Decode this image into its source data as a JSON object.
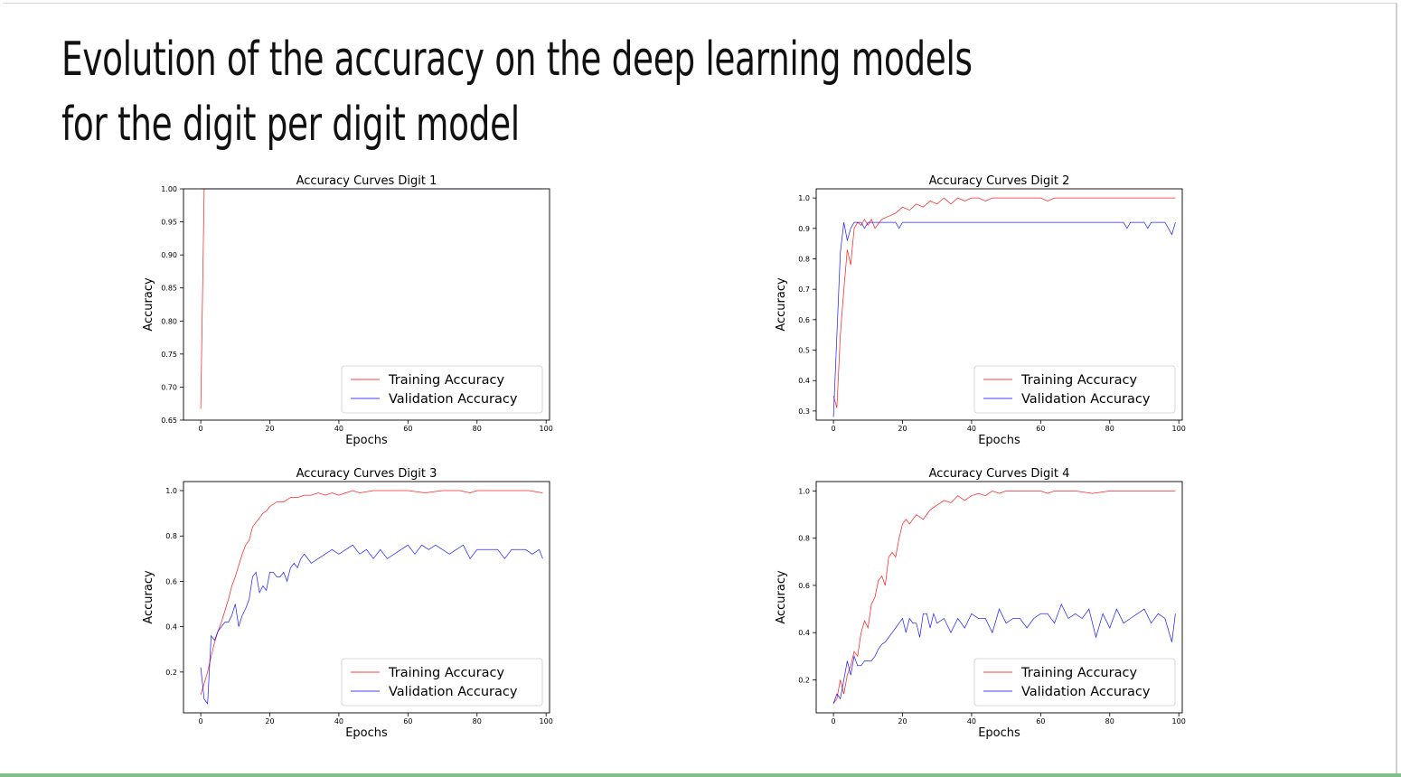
{
  "slide": {
    "title": "Evolution of the accuracy on the deep learning models for the digit per digit model"
  },
  "colors": {
    "training": "#ff0000",
    "validation": "#0000ff",
    "axis": "#000000"
  },
  "chart_data": [
    {
      "type": "line",
      "title": "Accuracy Curves Digit 1",
      "xlabel": "Epochs",
      "ylabel": "Accuracy",
      "xlim": [
        -5,
        101
      ],
      "ylim": [
        0.65,
        1.0
      ],
      "xticks": [
        0,
        20,
        40,
        60,
        80,
        100
      ],
      "xtick_labels": [
        "0",
        "20",
        "40",
        "60",
        "80",
        "100"
      ],
      "yticks": [
        0.65,
        0.7,
        0.75,
        0.8,
        0.85,
        0.9,
        0.95,
        1.0
      ],
      "ytick_labels": [
        "0.65",
        "0.70",
        "0.75",
        "0.80",
        "0.85",
        "0.90",
        "0.95",
        "1.00"
      ],
      "legend": "lower-right",
      "grid": false,
      "series": [
        {
          "name": "Training Accuracy",
          "x": [
            0,
            1,
            2,
            99
          ],
          "values": [
            0.667,
            1.0,
            1.0,
            1.0
          ]
        },
        {
          "name": "Validation Accuracy",
          "x": [
            0,
            1,
            99
          ],
          "values": [
            1.0,
            1.0,
            1.0
          ]
        }
      ]
    },
    {
      "type": "line",
      "title": "Accuracy Curves Digit 2",
      "xlabel": "Epochs",
      "ylabel": "Accuracy",
      "xlim": [
        -5,
        101
      ],
      "ylim": [
        0.27,
        1.03
      ],
      "xticks": [
        0,
        20,
        40,
        60,
        80,
        100
      ],
      "xtick_labels": [
        "0",
        "20",
        "40",
        "60",
        "80",
        "100"
      ],
      "yticks": [
        0.3,
        0.4,
        0.5,
        0.6,
        0.7,
        0.8,
        0.9,
        1.0
      ],
      "ytick_labels": [
        "0.3",
        "0.4",
        "0.5",
        "0.6",
        "0.7",
        "0.8",
        "0.9",
        "1.0"
      ],
      "legend": "lower-right",
      "grid": false,
      "series": [
        {
          "name": "Training Accuracy",
          "x": [
            0,
            1,
            2,
            3,
            4,
            5,
            6,
            7,
            8,
            9,
            10,
            11,
            12,
            14,
            16,
            18,
            20,
            22,
            24,
            26,
            28,
            30,
            32,
            34,
            36,
            38,
            40,
            42,
            44,
            46,
            50,
            55,
            60,
            62,
            64,
            70,
            80,
            90,
            99
          ],
          "values": [
            0.35,
            0.31,
            0.55,
            0.7,
            0.83,
            0.78,
            0.9,
            0.92,
            0.91,
            0.93,
            0.91,
            0.93,
            0.9,
            0.93,
            0.94,
            0.95,
            0.97,
            0.96,
            0.98,
            0.97,
            0.99,
            0.98,
            1.0,
            0.98,
            1.0,
            0.99,
            1.0,
            1.0,
            0.99,
            1.0,
            1.0,
            1.0,
            1.0,
            0.99,
            1.0,
            1.0,
            1.0,
            1.0,
            1.0
          ]
        },
        {
          "name": "Validation Accuracy",
          "x": [
            0,
            1,
            2,
            3,
            4,
            5,
            6,
            7,
            8,
            9,
            10,
            11,
            12,
            13,
            14,
            15,
            18,
            19,
            20,
            25,
            30,
            40,
            50,
            60,
            70,
            80,
            84,
            85,
            86,
            90,
            91,
            92,
            95,
            96,
            97,
            98,
            99
          ],
          "values": [
            0.28,
            0.55,
            0.82,
            0.92,
            0.86,
            0.9,
            0.92,
            0.92,
            0.92,
            0.9,
            0.92,
            0.92,
            0.92,
            0.92,
            0.92,
            0.92,
            0.92,
            0.9,
            0.92,
            0.92,
            0.92,
            0.92,
            0.92,
            0.92,
            0.92,
            0.92,
            0.92,
            0.9,
            0.92,
            0.92,
            0.9,
            0.92,
            0.92,
            0.92,
            0.9,
            0.88,
            0.92
          ]
        }
      ]
    },
    {
      "type": "line",
      "title": "Accuracy Curves Digit 3",
      "xlabel": "Epochs",
      "ylabel": "Accuracy",
      "xlim": [
        -5,
        101
      ],
      "ylim": [
        0.02,
        1.04
      ],
      "xticks": [
        0,
        20,
        40,
        60,
        80,
        100
      ],
      "xtick_labels": [
        "0",
        "20",
        "40",
        "60",
        "80",
        "100"
      ],
      "yticks": [
        0.2,
        0.4,
        0.6,
        0.8,
        1.0
      ],
      "ytick_labels": [
        "0.2",
        "0.4",
        "0.6",
        "0.8",
        "1.0"
      ],
      "legend": "lower-right",
      "grid": false,
      "series": [
        {
          "name": "Training Accuracy",
          "x": [
            0,
            1,
            2,
            3,
            4,
            5,
            6,
            7,
            8,
            9,
            10,
            11,
            12,
            13,
            14,
            15,
            16,
            17,
            18,
            19,
            20,
            22,
            24,
            26,
            28,
            30,
            32,
            34,
            36,
            38,
            40,
            42,
            44,
            46,
            50,
            55,
            60,
            65,
            70,
            75,
            78,
            80,
            85,
            90,
            95,
            99
          ],
          "values": [
            0.1,
            0.15,
            0.2,
            0.27,
            0.33,
            0.38,
            0.42,
            0.47,
            0.52,
            0.58,
            0.62,
            0.67,
            0.72,
            0.76,
            0.78,
            0.84,
            0.86,
            0.88,
            0.9,
            0.91,
            0.93,
            0.95,
            0.95,
            0.97,
            0.97,
            0.98,
            0.98,
            0.99,
            0.98,
            0.99,
            0.98,
            0.99,
            1.0,
            0.99,
            1.0,
            1.0,
            1.0,
            0.99,
            1.0,
            1.0,
            0.99,
            1.0,
            1.0,
            1.0,
            1.0,
            0.99
          ]
        },
        {
          "name": "Validation Accuracy",
          "x": [
            0,
            1,
            2,
            3,
            4,
            5,
            6,
            7,
            8,
            9,
            10,
            11,
            12,
            13,
            14,
            15,
            16,
            17,
            18,
            19,
            20,
            21,
            22,
            23,
            24,
            25,
            26,
            27,
            28,
            29,
            30,
            32,
            34,
            36,
            38,
            40,
            42,
            44,
            46,
            48,
            50,
            52,
            54,
            56,
            58,
            60,
            62,
            64,
            66,
            68,
            70,
            72,
            74,
            76,
            78,
            80,
            82,
            84,
            86,
            88,
            90,
            92,
            94,
            96,
            98,
            99
          ],
          "values": [
            0.22,
            0.08,
            0.06,
            0.36,
            0.34,
            0.38,
            0.4,
            0.42,
            0.42,
            0.45,
            0.5,
            0.4,
            0.45,
            0.48,
            0.52,
            0.62,
            0.64,
            0.55,
            0.58,
            0.56,
            0.64,
            0.64,
            0.62,
            0.62,
            0.64,
            0.6,
            0.66,
            0.68,
            0.66,
            0.7,
            0.72,
            0.68,
            0.7,
            0.72,
            0.74,
            0.72,
            0.74,
            0.76,
            0.72,
            0.74,
            0.7,
            0.74,
            0.7,
            0.72,
            0.74,
            0.76,
            0.72,
            0.76,
            0.74,
            0.76,
            0.74,
            0.72,
            0.74,
            0.76,
            0.7,
            0.74,
            0.74,
            0.74,
            0.74,
            0.7,
            0.74,
            0.74,
            0.74,
            0.72,
            0.74,
            0.7
          ]
        }
      ]
    },
    {
      "type": "line",
      "title": "Accuracy Curves Digit 4",
      "xlabel": "Epochs",
      "ylabel": "Accuracy",
      "xlim": [
        -5,
        101
      ],
      "ylim": [
        0.06,
        1.04
      ],
      "xticks": [
        0,
        20,
        40,
        60,
        80,
        100
      ],
      "xtick_labels": [
        "0",
        "20",
        "40",
        "60",
        "80",
        "100"
      ],
      "yticks": [
        0.2,
        0.4,
        0.6,
        0.8,
        1.0
      ],
      "ytick_labels": [
        "0.2",
        "0.4",
        "0.6",
        "0.8",
        "1.0"
      ],
      "legend": "lower-right",
      "grid": false,
      "series": [
        {
          "name": "Training Accuracy",
          "x": [
            0,
            1,
            2,
            3,
            4,
            5,
            6,
            7,
            8,
            9,
            10,
            11,
            12,
            13,
            14,
            15,
            16,
            17,
            18,
            19,
            20,
            21,
            22,
            24,
            26,
            28,
            30,
            32,
            34,
            36,
            38,
            40,
            42,
            44,
            46,
            48,
            50,
            55,
            60,
            62,
            64,
            66,
            70,
            75,
            80,
            85,
            90,
            95,
            99
          ],
          "values": [
            0.1,
            0.12,
            0.2,
            0.14,
            0.22,
            0.26,
            0.32,
            0.3,
            0.4,
            0.45,
            0.42,
            0.52,
            0.55,
            0.62,
            0.64,
            0.6,
            0.72,
            0.74,
            0.72,
            0.8,
            0.86,
            0.88,
            0.86,
            0.9,
            0.88,
            0.92,
            0.94,
            0.96,
            0.95,
            0.98,
            0.96,
            0.98,
            0.99,
            0.98,
            1.0,
            0.99,
            1.0,
            1.0,
            1.0,
            0.99,
            1.0,
            1.0,
            1.0,
            0.99,
            1.0,
            1.0,
            1.0,
            1.0,
            1.0
          ]
        },
        {
          "name": "Validation Accuracy",
          "x": [
            0,
            1,
            2,
            3,
            4,
            5,
            6,
            7,
            8,
            9,
            10,
            11,
            12,
            13,
            14,
            15,
            16,
            17,
            18,
            19,
            20,
            21,
            22,
            23,
            24,
            25,
            26,
            27,
            28,
            29,
            30,
            32,
            34,
            36,
            38,
            40,
            42,
            44,
            46,
            48,
            50,
            52,
            54,
            56,
            58,
            60,
            62,
            64,
            66,
            68,
            70,
            72,
            74,
            76,
            78,
            80,
            82,
            84,
            86,
            88,
            90,
            92,
            94,
            96,
            98,
            99
          ],
          "values": [
            0.1,
            0.14,
            0.12,
            0.2,
            0.28,
            0.22,
            0.3,
            0.26,
            0.26,
            0.28,
            0.28,
            0.28,
            0.3,
            0.33,
            0.35,
            0.36,
            0.38,
            0.4,
            0.42,
            0.44,
            0.46,
            0.4,
            0.46,
            0.44,
            0.44,
            0.38,
            0.48,
            0.48,
            0.42,
            0.48,
            0.44,
            0.46,
            0.4,
            0.46,
            0.42,
            0.48,
            0.46,
            0.46,
            0.4,
            0.5,
            0.44,
            0.46,
            0.46,
            0.42,
            0.46,
            0.48,
            0.48,
            0.44,
            0.52,
            0.46,
            0.48,
            0.46,
            0.5,
            0.38,
            0.48,
            0.42,
            0.5,
            0.44,
            0.46,
            0.48,
            0.5,
            0.44,
            0.48,
            0.46,
            0.36,
            0.48
          ]
        }
      ]
    }
  ]
}
